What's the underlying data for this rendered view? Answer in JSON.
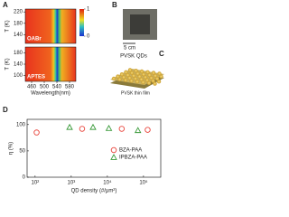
{
  "panel_labels": [
    "A",
    "B",
    "C",
    "D"
  ],
  "photo": {
    "scale": "5 cm"
  },
  "schematic": {
    "top": "PVSK QDs",
    "bottom": "PVSK thin film"
  },
  "chart_data": [
    {
      "type": "heatmap",
      "label": "OABr",
      "ylabel": "T (K)",
      "xlim": [
        440,
        600
      ],
      "ylim": [
        110,
        230
      ],
      "yticks": [
        140,
        180,
        220
      ],
      "colorbar": {
        "lim": [
          0,
          1
        ],
        "ticks": [
          0,
          1
        ]
      }
    },
    {
      "type": "heatmap",
      "label": "APTES",
      "ylabel": "T (K)",
      "xlabel": "Wavelength(nm)",
      "xlim": [
        440,
        600
      ],
      "xticks": [
        460,
        500,
        540,
        580
      ],
      "ylim": [
        80,
        200
      ],
      "yticks": [
        100,
        140,
        180
      ]
    },
    {
      "type": "scatter",
      "ylabel": "η (%)",
      "xlabel": "QD density (#/μm²)",
      "log_x": true,
      "xlim": [
        60,
        300000
      ],
      "xticks": [
        {
          "value": 100,
          "label": "10²"
        },
        {
          "value": 1000,
          "label": "10³"
        },
        {
          "value": 10000,
          "label": "10⁴"
        },
        {
          "value": 100000,
          "label": "10⁵"
        }
      ],
      "ylim": [
        0,
        110
      ],
      "yticks": [
        0,
        50,
        100
      ],
      "series": [
        {
          "name": "BZA-PAA",
          "color": "#e8433a",
          "marker": "circle",
          "x": [
            110,
            2000,
            25000,
            130000
          ],
          "values": [
            85,
            92,
            92,
            90
          ]
        },
        {
          "name": "IPBZA-PAA",
          "color": "#3a9a3a",
          "marker": "triangle",
          "x": [
            900,
            4000,
            11000,
            70000
          ],
          "values": [
            95,
            95,
            93,
            89
          ]
        }
      ]
    }
  ]
}
